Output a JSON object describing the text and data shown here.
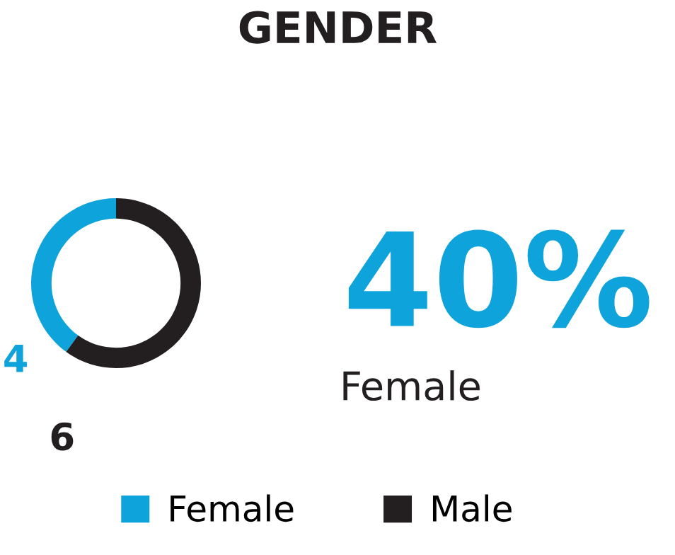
{
  "chart_data": {
    "type": "donut",
    "title": "GENDER",
    "categories": [
      "Female",
      "Male"
    ],
    "values": [
      4,
      6
    ],
    "colors": [
      "#0fa3dc",
      "#231f20"
    ],
    "data_labels": true,
    "legend": "bottom",
    "annotations": [
      "40%",
      "Female"
    ]
  }
}
